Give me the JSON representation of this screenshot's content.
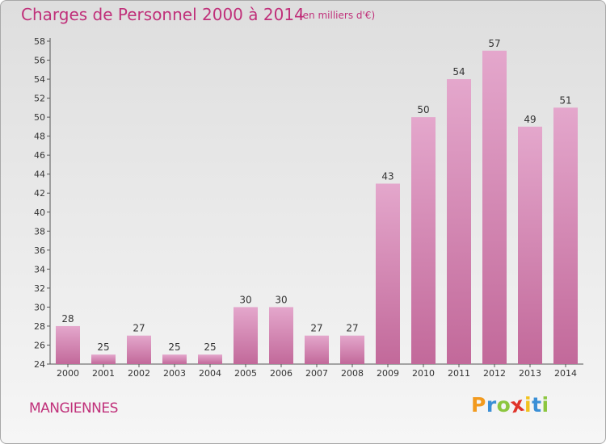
{
  "chart_data": {
    "type": "bar",
    "title": "Charges de Personnel 2000 à 2014",
    "subtitle": "(en milliers d'€)",
    "categories": [
      "2000",
      "2001",
      "2002",
      "2003",
      "2004",
      "2005",
      "2006",
      "2007",
      "2008",
      "2009",
      "2010",
      "2011",
      "2012",
      "2013",
      "2014"
    ],
    "values": [
      28,
      25,
      27,
      25,
      25,
      30,
      30,
      27,
      27,
      43,
      50,
      54,
      57,
      49,
      51
    ],
    "ylim": [
      24,
      58
    ],
    "yticks": [
      24,
      26,
      28,
      30,
      32,
      34,
      36,
      38,
      40,
      42,
      44,
      46,
      48,
      50,
      52,
      54,
      56,
      58
    ],
    "grid": false,
    "bar_color": "#c2699a",
    "bar_color_light": "#e4a7cc"
  },
  "location": "MANGIENNES",
  "logo": {
    "letters": [
      "P",
      "r",
      "o",
      "x",
      "i",
      "t",
      "i"
    ],
    "colors": [
      "#f29a1e",
      "#3a8fd6",
      "#8cc63f",
      "#e0342a",
      "#f2c21e",
      "#3a8fd6",
      "#8cc63f"
    ]
  },
  "colors": {
    "accent": "#c0307a"
  }
}
